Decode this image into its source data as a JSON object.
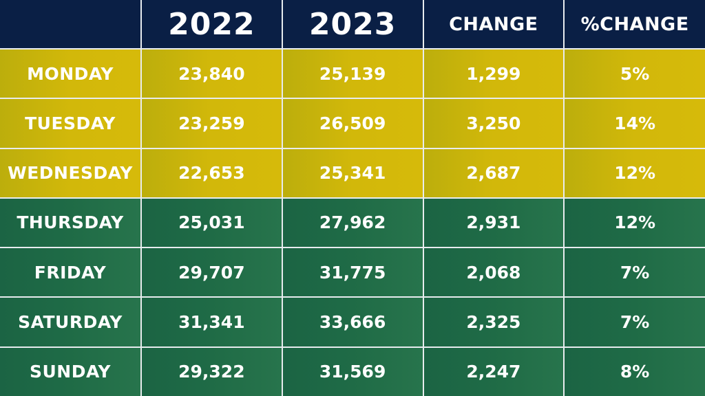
{
  "headers": [
    "",
    "2022",
    "2023",
    "CHANGE",
    "%CHANGE"
  ],
  "rows": [
    {
      "day": "MONDAY",
      "y2022": "23,840",
      "y2023": "25,139",
      "change": "1,299",
      "pct": "5%",
      "color": "yellow"
    },
    {
      "day": "TUESDAY",
      "y2022": "23,259",
      "y2023": "26,509",
      "change": "3,250",
      "pct": "14%",
      "color": "yellow"
    },
    {
      "day": "WEDNESDAY",
      "y2022": "22,653",
      "y2023": "25,341",
      "change": "2,687",
      "pct": "12%",
      "color": "yellow"
    },
    {
      "day": "THURSDAY",
      "y2022": "25,031",
      "y2023": "27,962",
      "change": "2,931",
      "pct": "12%",
      "color": "green"
    },
    {
      "day": "FRIDAY",
      "y2022": "29,707",
      "y2023": "31,775",
      "change": "2,068",
      "pct": "7%",
      "color": "green"
    },
    {
      "day": "SATURDAY",
      "y2022": "31,341",
      "y2023": "33,666",
      "change": "2,325",
      "pct": "7%",
      "color": "green"
    },
    {
      "day": "SUNDAY",
      "y2022": "29,322",
      "y2023": "31,569",
      "change": "2,247",
      "pct": "8%",
      "color": "green"
    }
  ],
  "colors": {
    "header": "#0a1f45",
    "yellow": "#cbb40a",
    "green": "#1f6b46"
  },
  "chart_data": {
    "type": "table",
    "columns": [
      "",
      "2022",
      "2023",
      "CHANGE",
      "%CHANGE"
    ],
    "rows": [
      [
        "MONDAY",
        23840,
        25139,
        1299,
        "5%"
      ],
      [
        "TUESDAY",
        23259,
        26509,
        3250,
        "14%"
      ],
      [
        "WEDNESDAY",
        22653,
        25341,
        2687,
        "12%"
      ],
      [
        "THURSDAY",
        25031,
        27962,
        2931,
        "12%"
      ],
      [
        "FRIDAY",
        29707,
        31775,
        2068,
        "7%"
      ],
      [
        "SATURDAY",
        31341,
        33666,
        2325,
        "7%"
      ],
      [
        "SUNDAY",
        29322,
        31569,
        2247,
        "8%"
      ]
    ]
  }
}
